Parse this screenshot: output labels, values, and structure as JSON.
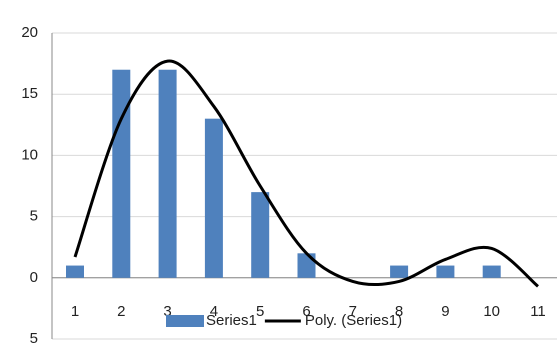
{
  "chart_data": {
    "type": "bar",
    "categories": [
      "1",
      "2",
      "3",
      "4",
      "5",
      "6",
      "7",
      "8",
      "9",
      "10",
      "11"
    ],
    "series": [
      {
        "name": "Series1",
        "type": "bar",
        "color": "#4f81bd",
        "values": [
          1,
          17,
          17,
          13,
          7,
          2,
          0,
          1,
          1,
          1,
          0
        ]
      },
      {
        "name": "Poly. (Series1)",
        "type": "line",
        "color": "#000000",
        "values": [
          1.7,
          13,
          17.7,
          14,
          7.5,
          2,
          -0.3,
          -0.3,
          1.5,
          2.4,
          -0.7
        ]
      }
    ],
    "ylim": [
      -5,
      20
    ],
    "yticks": [
      {
        "value": -5,
        "label": "5"
      },
      0,
      5,
      10,
      15,
      20
    ],
    "grid": true,
    "legend": "bottom"
  }
}
